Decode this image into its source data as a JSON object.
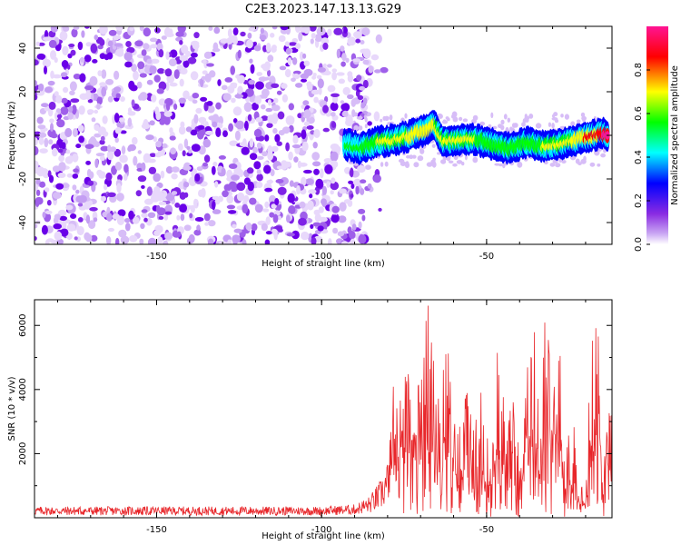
{
  "title": "C2E3.2023.147.13.13.G29",
  "chart_data": [
    {
      "type": "heatmap",
      "xlabel": "Height of straight line (km)",
      "ylabel": "Frequency (Hz)",
      "xlim": [
        -187,
        -12
      ],
      "ylim": [
        -50,
        50
      ],
      "xticks": [
        -150,
        -100,
        -50
      ],
      "yticks": [
        -40,
        -20,
        0,
        20,
        40
      ],
      "colorbar": {
        "label": "Normalized spectral amplitude",
        "range": [
          0.0,
          1.0
        ],
        "ticks": [
          "0.0",
          "0.2",
          "0.4",
          "0.6",
          "0.8"
        ],
        "colors": [
          "#ffffff",
          "#8a2be2",
          "#0000ff",
          "#00ffff",
          "#00ff00",
          "#ffff00",
          "#ff0000",
          "#ff1493"
        ]
      },
      "noise_region": {
        "x_range": [
          -187,
          -85
        ],
        "frequency_range": [
          -50,
          50
        ],
        "amplitude": 0.15
      },
      "signal_ridge": {
        "x": [
          -93,
          -88,
          -83,
          -78,
          -73,
          -68,
          -66,
          -63,
          -58,
          -53,
          -48,
          -43,
          -38,
          -33,
          -28,
          -23,
          -18,
          -15,
          -13
        ],
        "frequency": [
          -4,
          -6,
          -3,
          -2,
          0,
          3,
          5,
          -3,
          -2,
          -2,
          -4,
          -6,
          -3,
          -5,
          -4,
          -2,
          0,
          1,
          0
        ],
        "amplitude": [
          0.35,
          0.4,
          0.5,
          0.55,
          0.6,
          0.65,
          0.6,
          0.5,
          0.55,
          0.5,
          0.5,
          0.5,
          0.45,
          0.5,
          0.55,
          0.6,
          0.7,
          0.8,
          1.0
        ]
      }
    },
    {
      "type": "line",
      "xlabel": "Height of straight line (km)",
      "ylabel": "SNR (10 * v/v)",
      "xlim": [
        -187,
        -12
      ],
      "ylim": [
        0,
        6800
      ],
      "xticks": [
        -150,
        -100,
        -50
      ],
      "yticks": [
        2000,
        4000,
        6000
      ],
      "line_color": "#e8262a",
      "series": [
        {
          "x": [
            -187,
            -150,
            -120,
            -100,
            -90,
            -85,
            -82,
            -80,
            -78,
            -76,
            -74,
            -72,
            -70,
            -68,
            -66,
            -64,
            -62,
            -60,
            -58,
            -56,
            -54,
            -52,
            -50,
            -48,
            -46,
            -44,
            -42,
            -40,
            -38,
            -36,
            -34,
            -32,
            -30,
            -28,
            -26,
            -24,
            -22,
            -20,
            -18,
            -16,
            -14,
            -12
          ],
          "values": [
            250,
            250,
            250,
            250,
            300,
            500,
            800,
            1200,
            4500,
            4800,
            4200,
            5100,
            3500,
            6700,
            4800,
            3800,
            5600,
            3200,
            2800,
            4200,
            2500,
            3900,
            2400,
            3000,
            5900,
            2200,
            3800,
            1800,
            4900,
            6000,
            3200,
            6700,
            3500,
            5600,
            1900,
            3400,
            1000,
            800,
            6000,
            5400,
            3600,
            4000
          ]
        }
      ]
    }
  ]
}
